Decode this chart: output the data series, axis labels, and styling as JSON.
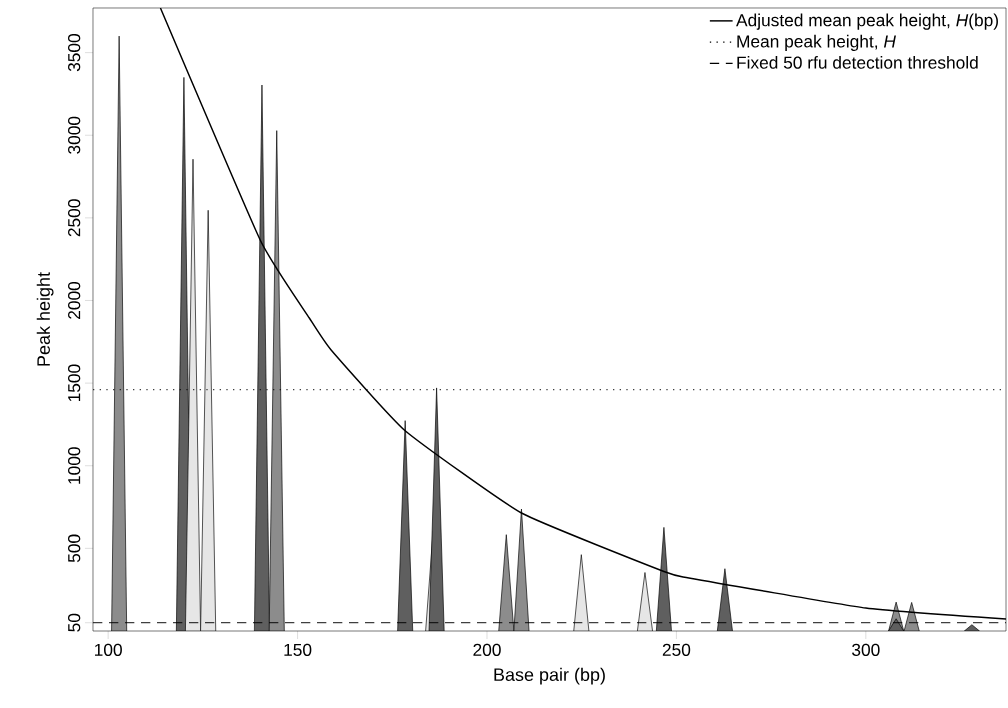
{
  "chart_data": {
    "type": "area",
    "xlabel": "Base pair (bp)",
    "ylabel": "Peak height",
    "xlim": [
      96,
      337
    ],
    "ylim": [
      0,
      3770
    ],
    "xticks": [
      100,
      150,
      200,
      250,
      300
    ],
    "yticks": [
      50,
      500,
      1000,
      1500,
      2000,
      2500,
      3000,
      3500
    ],
    "legend": "top right",
    "series": [
      {
        "color": "#8c8c8c",
        "x": [
          100.9,
          102.9,
          104.9
        ],
        "values": [
          0,
          3600,
          0
        ]
      },
      {
        "color": "#5f5f5f",
        "x": [
          118,
          120,
          122
        ],
        "values": [
          0,
          3350,
          0
        ]
      },
      {
        "color": "#e6e6e6",
        "x": [
          120.4,
          122.4,
          124.4
        ],
        "values": [
          0,
          2855,
          0
        ]
      },
      {
        "color": "#e6e6e6",
        "x": [
          124.4,
          126.4,
          128.4
        ],
        "values": [
          0,
          2546,
          0
        ]
      },
      {
        "color": "#5f5f5f",
        "x": [
          138.6,
          140.6,
          142.6
        ],
        "values": [
          0,
          3304,
          0
        ]
      },
      {
        "color": "#8c8c8c",
        "x": [
          142.5,
          144.5,
          146.5
        ],
        "values": [
          0,
          3028,
          0
        ]
      },
      {
        "color": "#5f5f5f",
        "x": [
          176.4,
          178.4,
          180.4
        ],
        "values": [
          0,
          1273,
          0
        ]
      },
      {
        "color": "#e6e6e6",
        "x": [
          183.8,
          185.8,
          187.8
        ],
        "values": [
          0,
          607,
          0
        ]
      },
      {
        "color": "#5f5f5f",
        "x": [
          184.7,
          186.7,
          188.7
        ],
        "values": [
          0,
          1471,
          0
        ]
      },
      {
        "color": "#8c8c8c",
        "x": [
          203.1,
          205.1,
          207.1
        ],
        "values": [
          0,
          583,
          0
        ]
      },
      {
        "color": "#8c8c8c",
        "x": [
          207.1,
          209.1,
          211.1
        ],
        "values": [
          0,
          738,
          0
        ]
      },
      {
        "color": "#e6e6e6",
        "x": [
          222.9,
          224.9,
          226.9
        ],
        "values": [
          0,
          462,
          0
        ]
      },
      {
        "color": "#e6e6e6",
        "x": [
          239.7,
          241.7,
          243.7
        ],
        "values": [
          0,
          354,
          0
        ]
      },
      {
        "color": "#5f5f5f",
        "x": [
          244.7,
          246.7,
          248.7
        ],
        "values": [
          0,
          627,
          0
        ]
      },
      {
        "color": "#5f5f5f",
        "x": [
          260.8,
          262.8,
          264.8
        ],
        "values": [
          0,
          377,
          0
        ]
      },
      {
        "color": "#8c8c8c",
        "x": [
          306,
          308,
          310
        ],
        "values": [
          0,
          175,
          0
        ]
      },
      {
        "color": "#5f5f5f",
        "x": [
          306,
          308,
          310
        ],
        "values": [
          0,
          74,
          0
        ]
      },
      {
        "color": "#8c8c8c",
        "x": [
          310.1,
          312.1,
          314.1
        ],
        "values": [
          0,
          173,
          0
        ]
      },
      {
        "color": "#5f5f5f",
        "x": [
          326,
          328,
          330
        ],
        "values": [
          0,
          38,
          0
        ]
      },
      {
        "type": "line",
        "name": "Adjusted mean peak height, *H*(bp)",
        "color": "#000000",
        "line_style": "solid",
        "x": [
          113.8,
          140.2,
          153.1,
          158.8,
          178.4,
          209.1,
          246.7,
          253.3,
          300,
          337
        ],
        "values": [
          3770,
          2363,
          1894,
          1702,
          1212,
          714,
          360,
          321,
          139,
          72
        ]
      }
    ],
    "ref_lines": [
      {
        "axis": "y",
        "value": 1460,
        "label": "Mean peak height, *H*",
        "color": "#000000",
        "line_style": "dotted"
      },
      {
        "axis": "y",
        "value": 50,
        "label": "Fixed 50 rfu detection threshold",
        "color": "#000000",
        "line_style": "dashed"
      }
    ]
  }
}
